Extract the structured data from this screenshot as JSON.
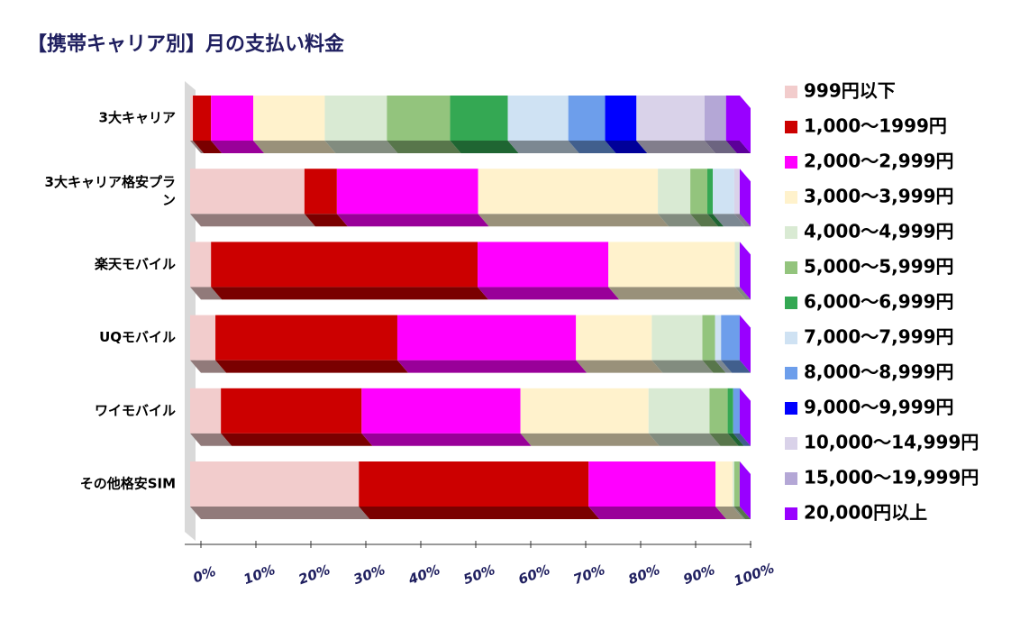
{
  "chart_data": {
    "type": "stacked-bar-horizontal",
    "title": "【携帯キャリア別】月の支払い料金",
    "categories": [
      "3大キャリア",
      "3大キャリア格安プラン",
      "楽天モバイル",
      "UQモバイル",
      "ワイモバイル",
      "その他格安SIM"
    ],
    "series": [
      {
        "name": "999円以下",
        "color": "#f2cccc",
        "values": [
          0.5,
          20.8,
          3.8,
          4.6,
          5.6,
          30.7
        ]
      },
      {
        "name": "1,000〜1999円",
        "color": "#cc0000",
        "values": [
          3.3,
          5.9,
          48.5,
          33.1,
          25.6,
          41.8
        ]
      },
      {
        "name": "2,000〜2,999円",
        "color": "#ff00ff",
        "values": [
          7.7,
          25.7,
          23.8,
          32.5,
          28.9,
          23.1
        ]
      },
      {
        "name": "3,000〜3,999円",
        "color": "#fff2cc",
        "values": [
          13,
          32.7,
          23,
          13.8,
          23.3,
          3.1
        ]
      },
      {
        "name": "4,000〜4,999円",
        "color": "#d9ead3",
        "values": [
          11.3,
          5.9,
          0.9,
          9.2,
          11.1,
          0.3
        ]
      },
      {
        "name": "5,000〜5,999円",
        "color": "#93c47d",
        "values": [
          11.5,
          3.1,
          0,
          2.3,
          3.3,
          1.0
        ]
      },
      {
        "name": "6,000〜6,999円",
        "color": "#34a853",
        "values": [
          10.5,
          1.0,
          0,
          0,
          1.0,
          0
        ]
      },
      {
        "name": "7,000〜7,999円",
        "color": "#cfe2f3",
        "values": [
          11,
          3.9,
          0,
          1.1,
          0,
          0
        ]
      },
      {
        "name": "8,000〜8,999円",
        "color": "#6d9eeb",
        "values": [
          6.7,
          0,
          0,
          3.4,
          1.2,
          0
        ]
      },
      {
        "name": "9,000〜9,999円",
        "color": "#0000ff",
        "values": [
          5.7,
          0,
          0,
          0,
          0,
          0
        ]
      },
      {
        "name": "10,000〜14,999円",
        "color": "#d9d2e9",
        "values": [
          12.4,
          1.0,
          0,
          0,
          0,
          0
        ]
      },
      {
        "name": "15,000〜19,999円",
        "color": "#b4a7d6",
        "values": [
          3.9,
          0,
          0,
          0,
          0,
          0
        ]
      },
      {
        "name": "20,000円以上",
        "color": "#9900ff",
        "values": [
          2.5,
          0,
          0,
          0,
          0,
          0
        ]
      }
    ],
    "xlim": [
      0,
      100
    ],
    "xticks": [
      {
        "value": 0,
        "label": "0%"
      },
      {
        "value": 10,
        "label": "10%"
      },
      {
        "value": 20,
        "label": "20%"
      },
      {
        "value": 30,
        "label": "30%"
      },
      {
        "value": 40,
        "label": "40%"
      },
      {
        "value": 50,
        "label": "50%"
      },
      {
        "value": 60,
        "label": "60%"
      },
      {
        "value": 70,
        "label": "70%"
      },
      {
        "value": 80,
        "label": "80%"
      },
      {
        "value": 90,
        "label": "90%"
      },
      {
        "value": 100,
        "label": "100%"
      }
    ],
    "legend": "right"
  }
}
